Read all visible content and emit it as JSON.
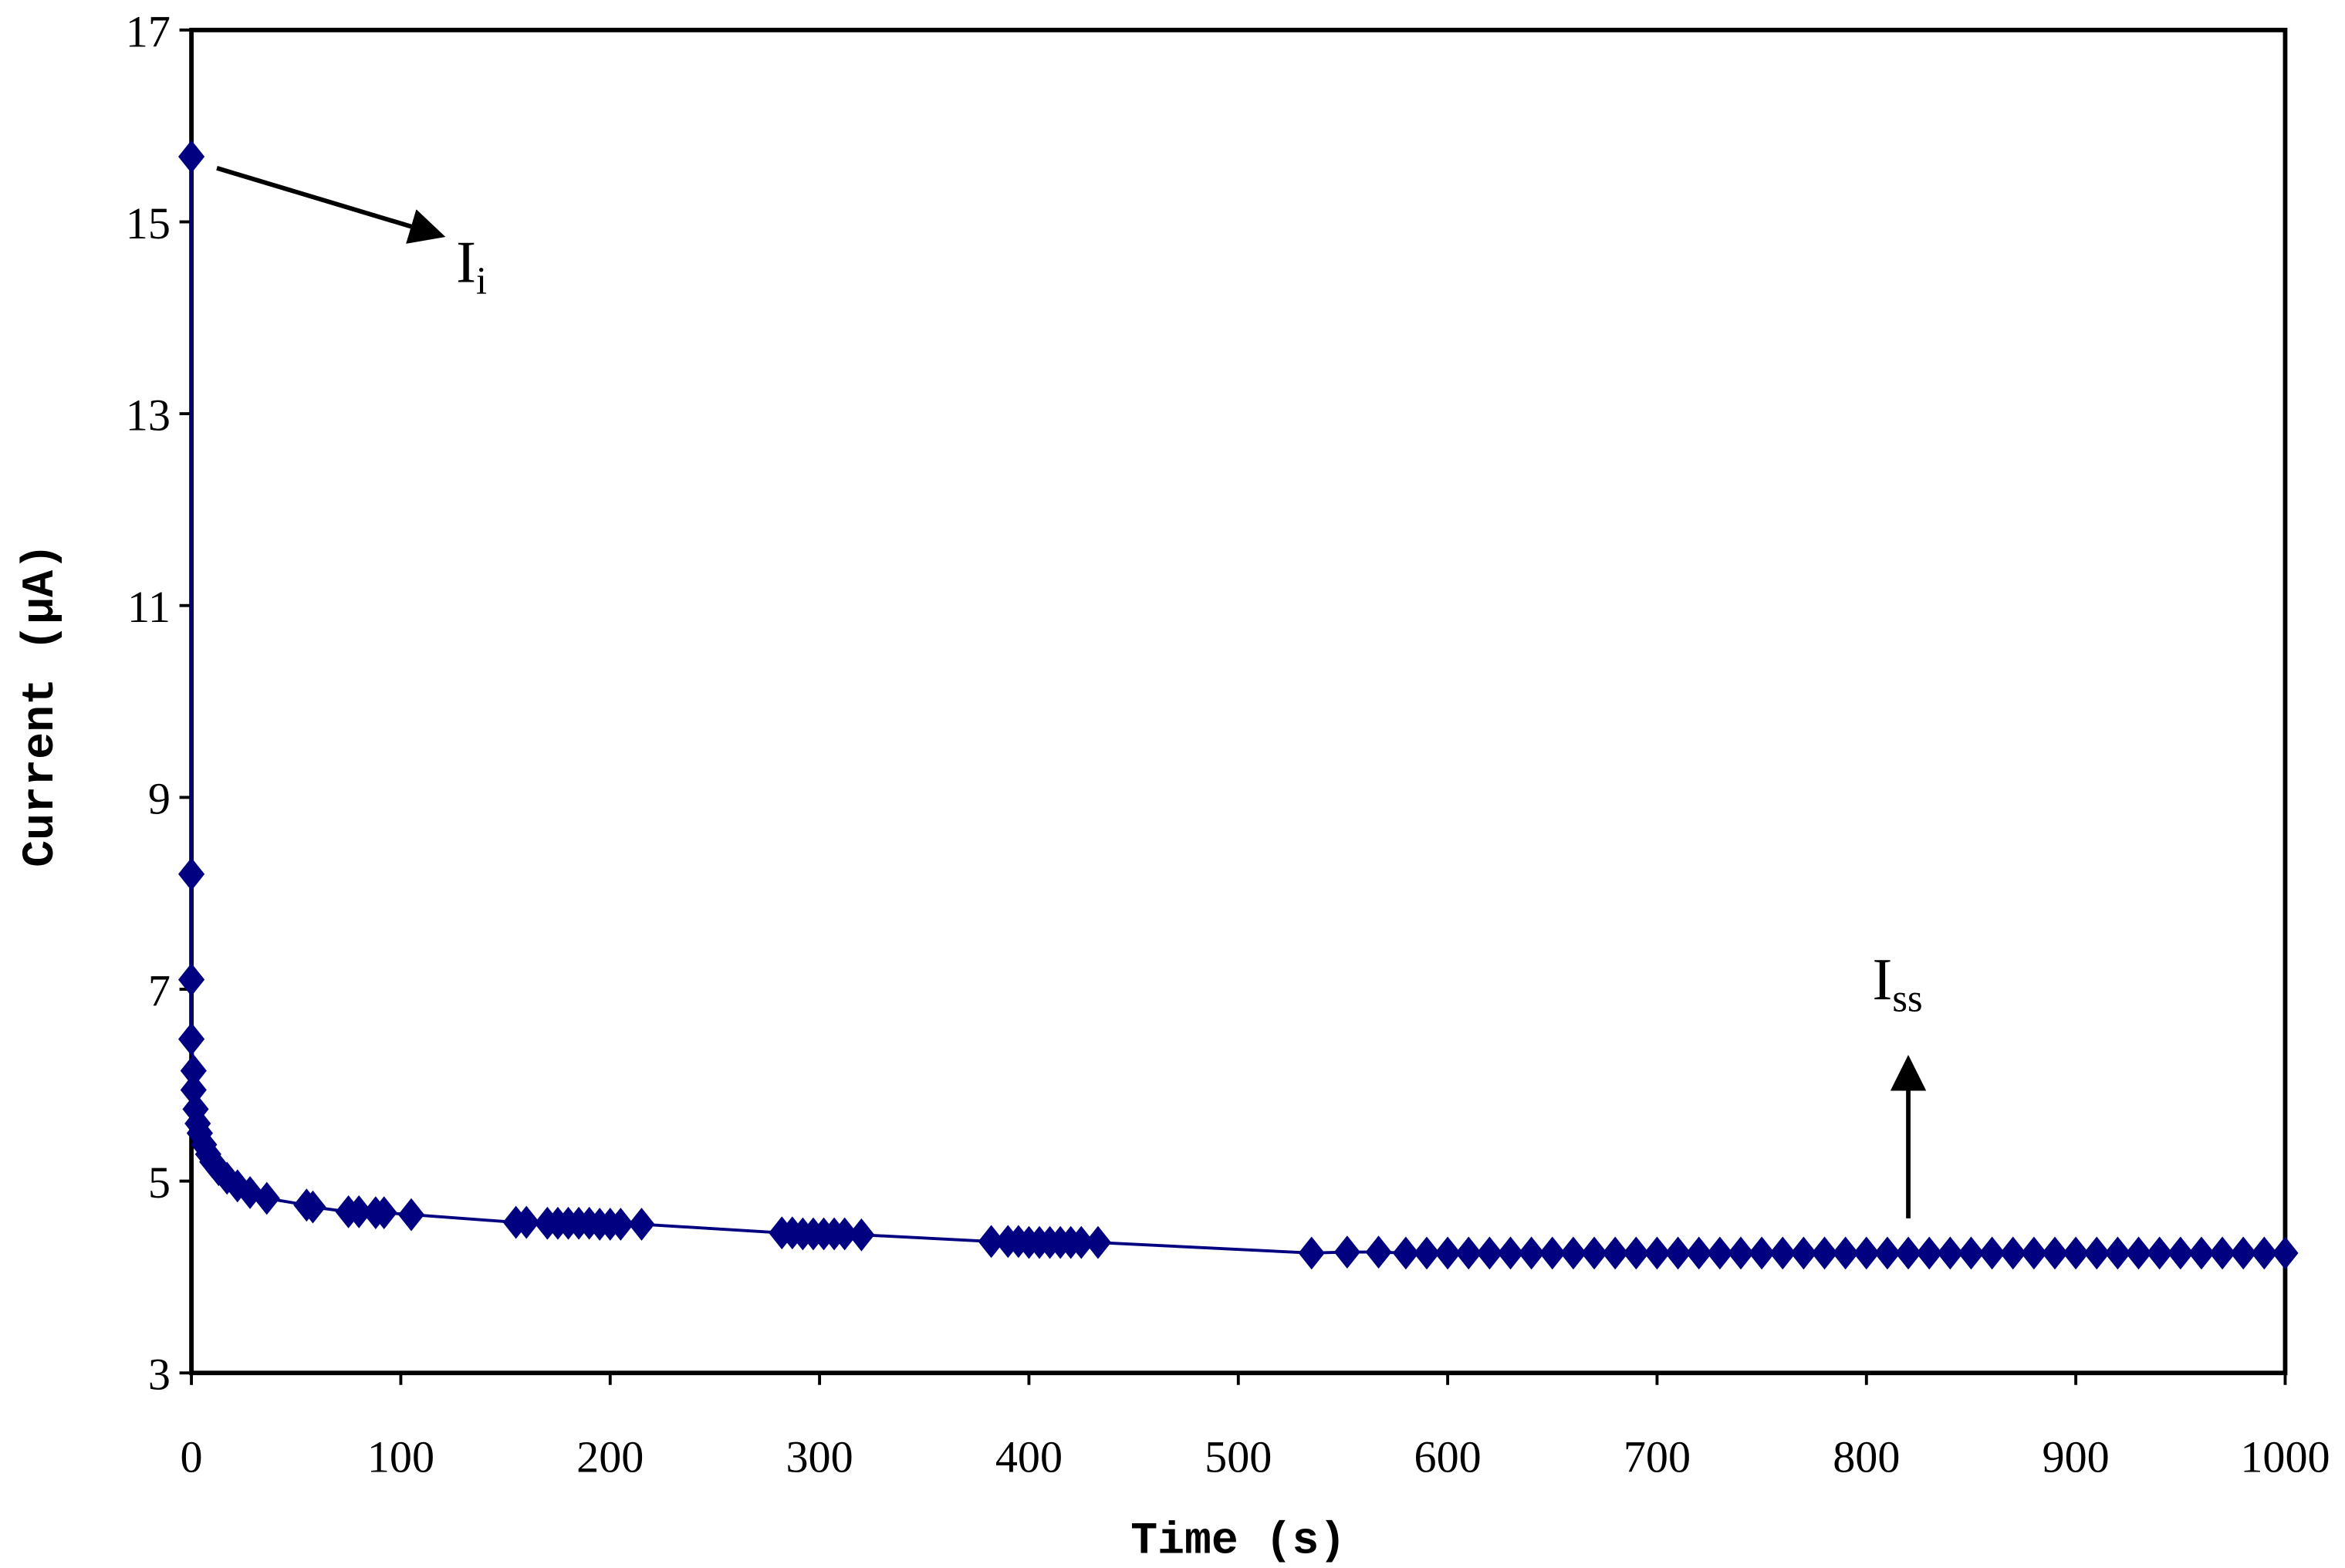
{
  "chart_data": {
    "type": "line",
    "x_label": "Time (s)",
    "y_label": "Current (μA)",
    "xlim": [
      0,
      1000
    ],
    "xticks": [
      0,
      100,
      200,
      300,
      400,
      500,
      600,
      700,
      800,
      900,
      1000
    ],
    "ylim": [
      3,
      17
    ],
    "yticks": [
      3,
      5,
      7,
      9,
      11,
      13,
      15,
      17
    ],
    "grid": false,
    "annotations": [
      {
        "text": "I",
        "sub": "i"
      },
      {
        "text": "I",
        "sub": "ss"
      }
    ],
    "series": [
      {
        "color": "#000080",
        "x": [
          0,
          0,
          0,
          0,
          1,
          1,
          2,
          3,
          4,
          6,
          8,
          10,
          13,
          17,
          22,
          28,
          36,
          55,
          58,
          75,
          80,
          88,
          92,
          105,
          155,
          160,
          170,
          175,
          180,
          185,
          190,
          195,
          200,
          205,
          215,
          282,
          287,
          292,
          297,
          302,
          307,
          312,
          320,
          382,
          390,
          395,
          400,
          405,
          410,
          415,
          420,
          425,
          433,
          535,
          552,
          567,
          580,
          590,
          600,
          610,
          620,
          630,
          640,
          650,
          660,
          670,
          680,
          690,
          700,
          710,
          720,
          730,
          740,
          750,
          760,
          770,
          780,
          790,
          800,
          810,
          820,
          830,
          840,
          850,
          860,
          870,
          880,
          890,
          900,
          910,
          920,
          930,
          940,
          950,
          960,
          970,
          980,
          990,
          1000
        ],
        "values": [
          15.68,
          8.2,
          7.1,
          6.48,
          6.15,
          5.95,
          5.75,
          5.6,
          5.5,
          5.38,
          5.28,
          5.2,
          5.12,
          5.03,
          4.95,
          4.88,
          4.82,
          4.75,
          4.73,
          4.68,
          4.68,
          4.67,
          4.67,
          4.65,
          4.57,
          4.57,
          4.56,
          4.56,
          4.56,
          4.56,
          4.56,
          4.55,
          4.55,
          4.55,
          4.55,
          4.46,
          4.46,
          4.45,
          4.45,
          4.45,
          4.45,
          4.45,
          4.44,
          4.37,
          4.37,
          4.37,
          4.36,
          4.36,
          4.36,
          4.36,
          4.36,
          4.36,
          4.36,
          4.25,
          4.26,
          4.26,
          4.25,
          4.25,
          4.25,
          4.25,
          4.25,
          4.25,
          4.25,
          4.25,
          4.25,
          4.25,
          4.25,
          4.25,
          4.25,
          4.25,
          4.25,
          4.25,
          4.25,
          4.25,
          4.25,
          4.25,
          4.25,
          4.25,
          4.25,
          4.25,
          4.25,
          4.25,
          4.25,
          4.25,
          4.25,
          4.25,
          4.25,
          4.25,
          4.25,
          4.25,
          4.25,
          4.25,
          4.25,
          4.25,
          4.25,
          4.25,
          4.25,
          4.25,
          4.25
        ]
      }
    ]
  }
}
